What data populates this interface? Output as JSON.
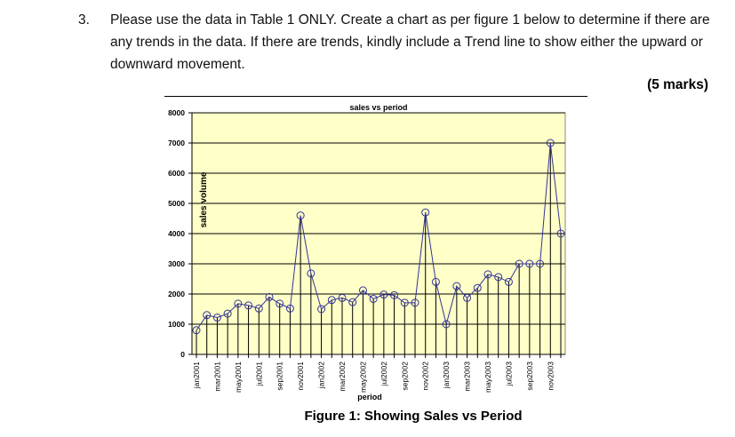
{
  "question": {
    "number": "3.",
    "text": "Please use the data in Table 1 ONLY. Create a chart as per figure 1 below to determine if there are any trends in the data. If there are trends, kindly include a Trend line to show either the upward or downward movement.",
    "marks": "(5 marks)"
  },
  "caption": "Figure 1: Showing Sales vs Period",
  "chart_data": {
    "type": "line",
    "title": "sales vs period",
    "xlabel": "period",
    "ylabel": "sales volume",
    "ylim": [
      0,
      8000
    ],
    "yticks": [
      0,
      1000,
      2000,
      3000,
      4000,
      5000,
      6000,
      7000,
      8000
    ],
    "grid": true,
    "drop_lines": true,
    "background_color": "#ffffc8",
    "line_color": "#333399",
    "x_tick_labels": [
      "jan2001",
      "mar2001",
      "may2001",
      "jul2001",
      "sep2001",
      "nov2001",
      "jan2002",
      "mar2002",
      "may2002",
      "jul2002",
      "sep2002",
      "nov2002",
      "jan2003",
      "mar2003",
      "may2003",
      "jul2003",
      "sep2003",
      "nov2003"
    ],
    "values": [
      800,
      1300,
      1220,
      1350,
      1680,
      1620,
      1520,
      1900,
      1680,
      1520,
      4600,
      2680,
      1500,
      1800,
      1870,
      1730,
      2120,
      1840,
      1980,
      1960,
      1710,
      1710,
      4700,
      2400,
      1000,
      2260,
      1870,
      2200,
      2650,
      2560,
      2400,
      3000,
      3000,
      3000,
      7000,
      4000
    ]
  }
}
